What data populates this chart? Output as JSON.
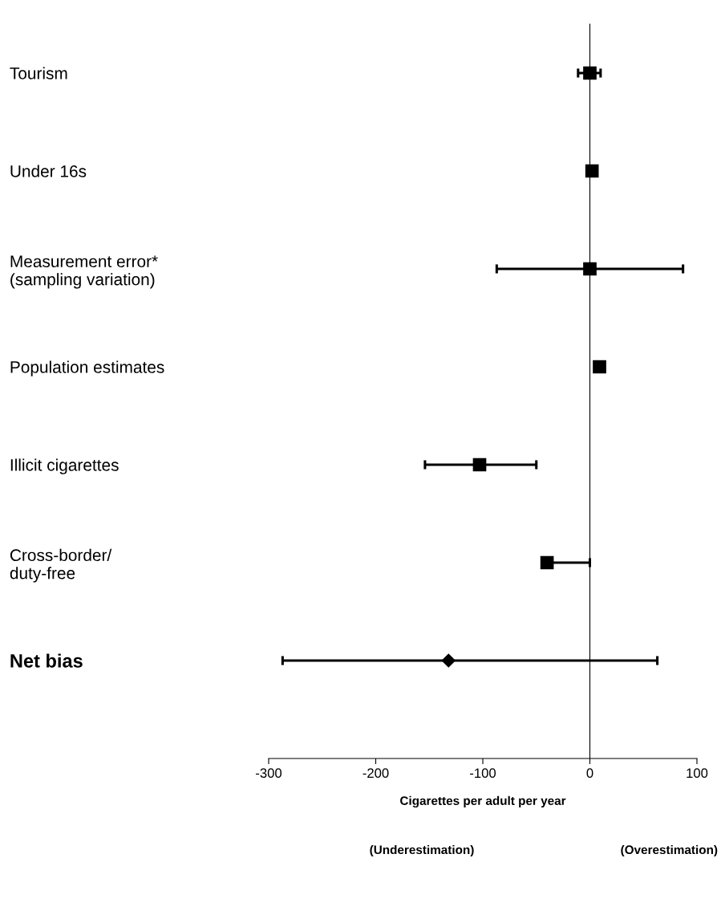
{
  "chart_data": {
    "type": "scatter",
    "orientation": "horizontal",
    "categories": [
      "Tourism",
      "Under 16s",
      "Measurement error*\n(sampling variation)",
      "Population estimates",
      "Illicit cigarettes",
      "Cross-border/\nduty-free",
      "Net bias"
    ],
    "series": [
      {
        "color": "#000000",
        "marker": "square",
        "values": [
          0,
          2,
          0,
          9,
          -103,
          -40,
          null
        ],
        "errors": [
          [
            -11,
            10
          ],
          null,
          [
            -87,
            87
          ],
          null,
          [
            -154,
            -50
          ],
          [
            -40,
            0
          ],
          null
        ]
      },
      {
        "color": "#000000",
        "marker": "diamond",
        "values": [
          null,
          null,
          null,
          null,
          null,
          null,
          -132
        ],
        "errors": [
          null,
          null,
          null,
          null,
          null,
          null,
          [
            -287,
            63
          ]
        ]
      }
    ],
    "xlim": [
      -300,
      100
    ],
    "xticks": [
      -300,
      -200,
      -100,
      0,
      100
    ],
    "xlabel": "Cigarettes per adult per year",
    "annotations": [
      "(Underestimation)",
      "(Overestimation)"
    ],
    "grid": false,
    "legend": false
  }
}
